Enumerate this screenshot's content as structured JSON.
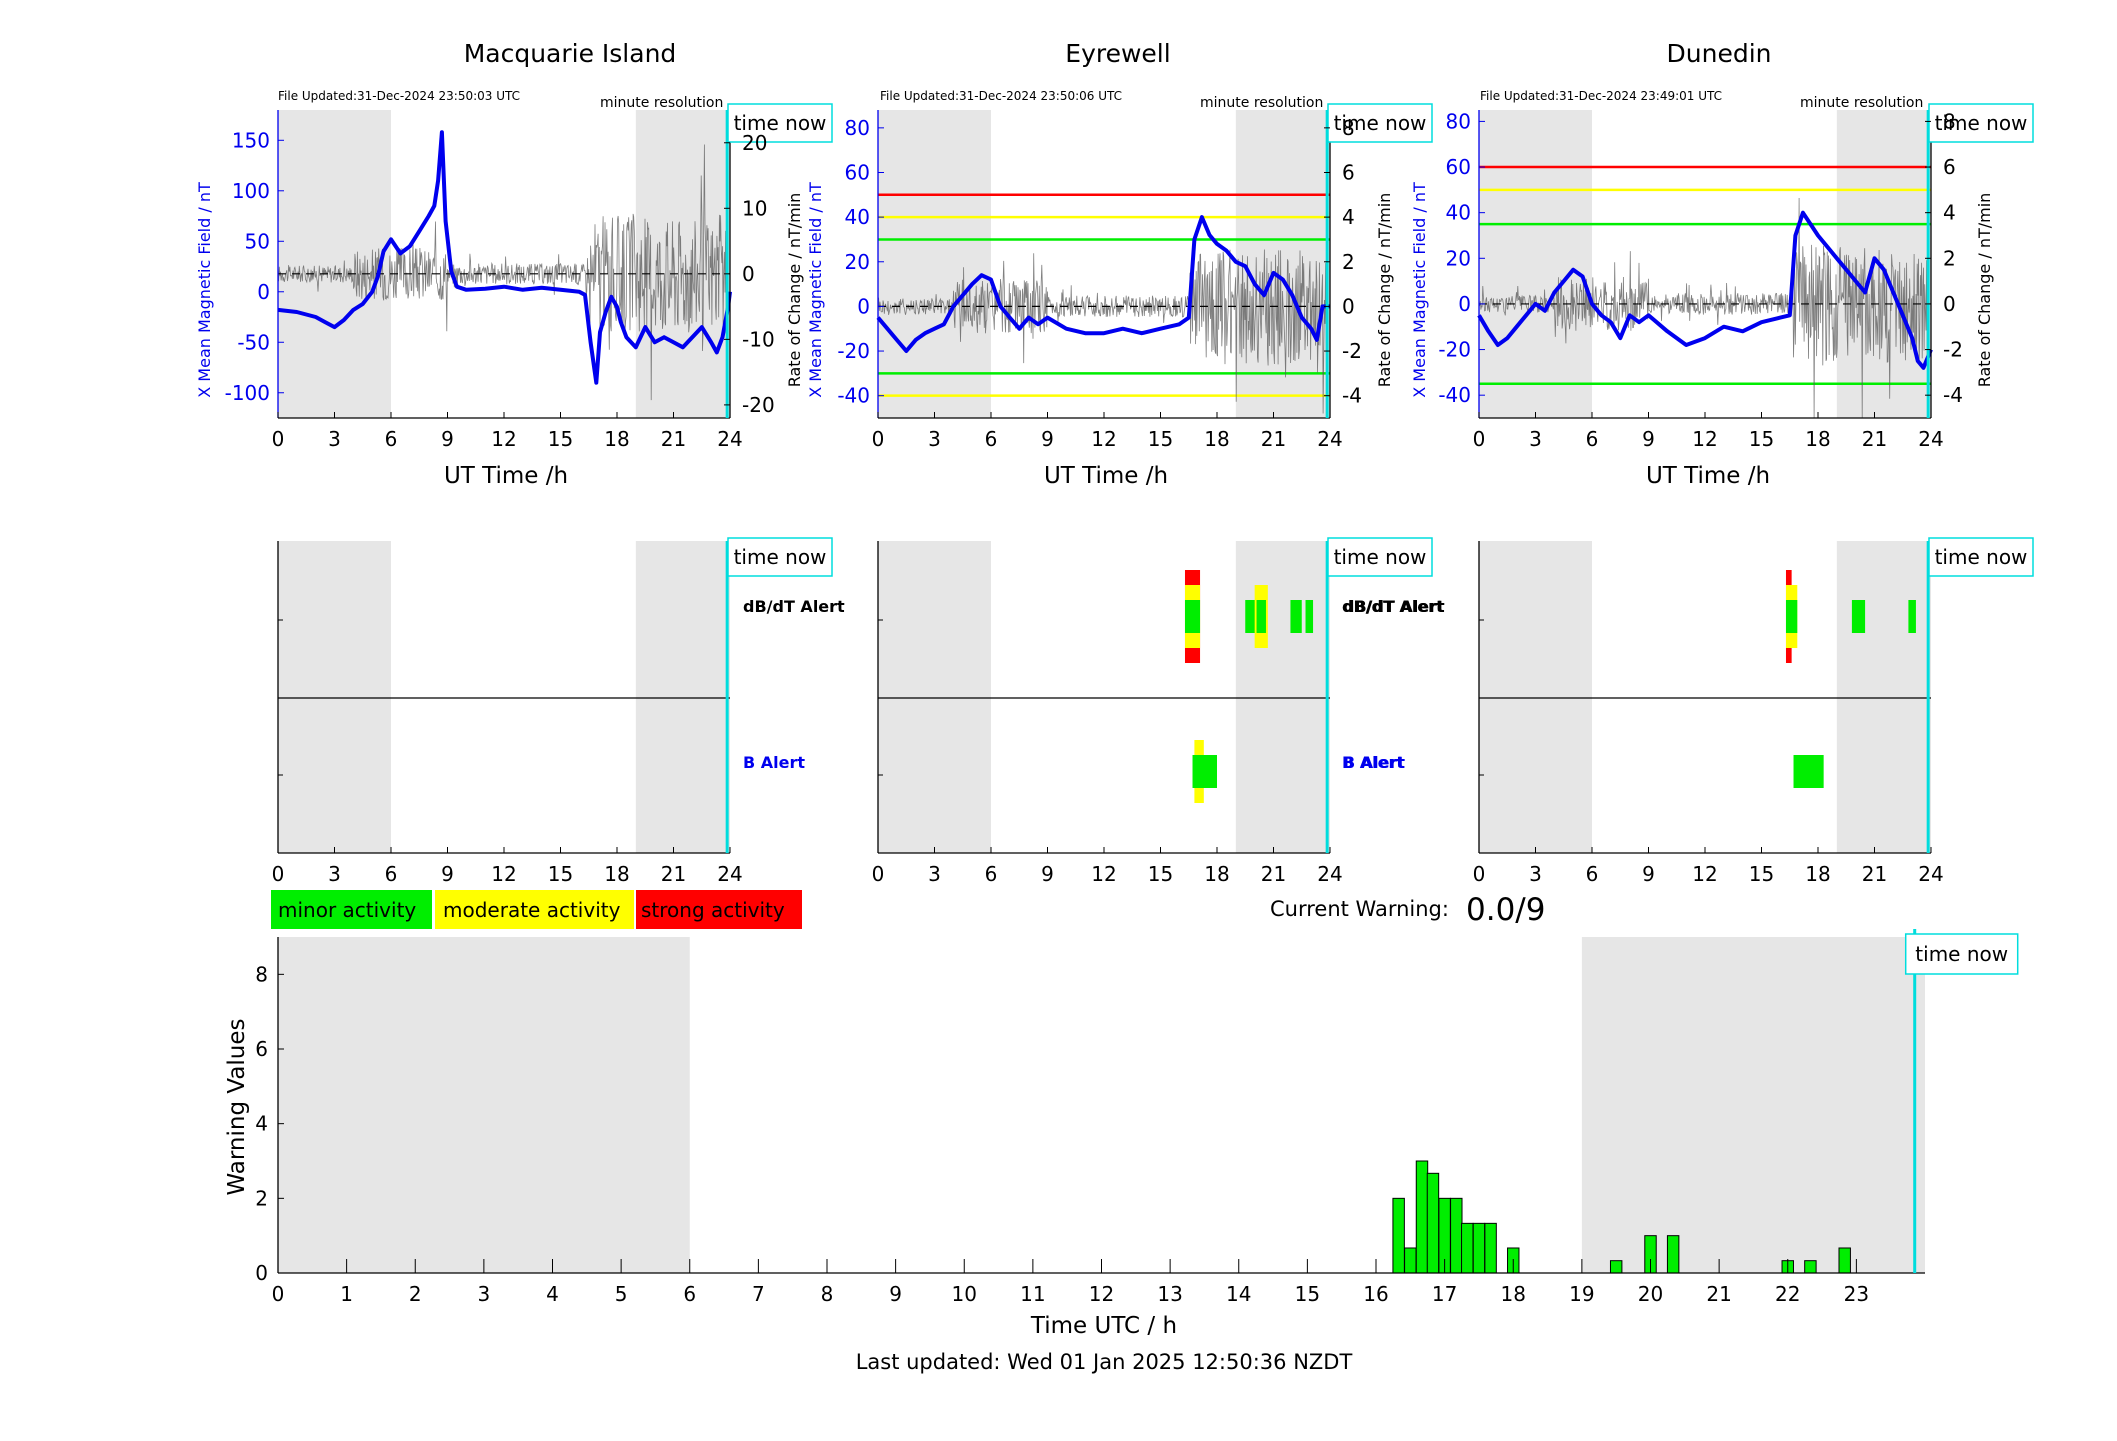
{
  "panels": [
    {
      "title": "Macquarie Island",
      "file_updated": "File Updated:31-Dec-2024 23:50:03 UTC",
      "resolution": "minute resolution",
      "time_now_label": "time now",
      "xlabel": "UT Time /h",
      "ylabel_left": "X Mean Magnetic Field / nT",
      "ylabel_right": "Rate of Change / nT/min",
      "xticks": [
        "0",
        "3",
        "6",
        "9",
        "12",
        "15",
        "18",
        "21",
        "24"
      ],
      "left_ticks": [
        "150",
        "100",
        "50",
        "0",
        "-50",
        "-100"
      ],
      "right_ticks": [
        "20",
        "10",
        "0",
        "-10",
        "-20"
      ],
      "dbdt_label": "dB/dT Alert",
      "b_label": "B Alert"
    },
    {
      "title": "Eyrewell",
      "file_updated": "File Updated:31-Dec-2024 23:50:06 UTC",
      "resolution": "minute resolution",
      "time_now_label": "time now",
      "xlabel": "UT Time /h",
      "ylabel_left": "X Mean Magnetic Field / nT",
      "ylabel_right": "Rate of Change / nT/min",
      "xticks": [
        "0",
        "3",
        "6",
        "9",
        "12",
        "15",
        "18",
        "21",
        "24"
      ],
      "left_ticks": [
        "80",
        "60",
        "40",
        "20",
        "0",
        "-20",
        "-40"
      ],
      "right_ticks": [
        "8",
        "6",
        "4",
        "2",
        "0",
        "-2",
        "-4"
      ],
      "dbdt_label": "dB/dT Alert",
      "b_label": "B Alert"
    },
    {
      "title": "Dunedin",
      "file_updated": "File Updated:31-Dec-2024 23:49:01 UTC",
      "resolution": "minute resolution",
      "time_now_label": "time now",
      "xlabel": "UT Time /h",
      "ylabel_left": "X Mean Magnetic Field / nT",
      "ylabel_right": "Rate of Change / nT/min",
      "xticks": [
        "0",
        "3",
        "6",
        "9",
        "12",
        "15",
        "18",
        "21",
        "24"
      ],
      "left_ticks": [
        "80",
        "60",
        "40",
        "20",
        "0",
        "-20",
        "-40"
      ],
      "right_ticks": [
        "8",
        "6",
        "4",
        "2",
        "0",
        "-2",
        "-4"
      ],
      "dbdt_label": "dB/dT Alert",
      "b_label": "B Alert"
    }
  ],
  "legend": {
    "minor": "minor activity",
    "moderate": "moderate activity",
    "strong": "strong activity"
  },
  "current_warning": {
    "label": "Current Warning:",
    "value": "0.0/9"
  },
  "warning_chart": {
    "ylabel": "Warning Values",
    "xlabel": "Time UTC / h",
    "time_now_label": "time now",
    "xticks": [
      "0",
      "1",
      "2",
      "3",
      "4",
      "5",
      "6",
      "7",
      "8",
      "9",
      "10",
      "11",
      "12",
      "13",
      "14",
      "15",
      "16",
      "17",
      "18",
      "19",
      "20",
      "21",
      "22",
      "23"
    ],
    "yticks": [
      "8",
      "6",
      "4",
      "2",
      "0"
    ]
  },
  "last_updated": "Last updated: Wed 01 Jan 2025 12:50:36 NZDT",
  "colors": {
    "minor": "#00ee00",
    "moderate": "#ffff00",
    "strong": "#ff0000",
    "field_line": "#0000ee",
    "time_now": "#00dddd",
    "shade": "#e6e6e6"
  },
  "chart_data": [
    {
      "type": "line",
      "title": "Macquarie Island",
      "xlabel": "UT Time /h",
      "ylabel": "X Mean Magnetic Field / nT",
      "y2label": "Rate of Change / nT/min",
      "xlim": [
        0,
        24
      ],
      "ylim": [
        -125,
        180
      ],
      "y2lim": [
        -22,
        25
      ],
      "night_shading": [
        [
          0,
          6
        ],
        [
          19,
          24
        ]
      ],
      "time_now": 23.85,
      "series": [
        {
          "x": [
            0,
            1,
            2,
            2.5,
            3,
            3.5,
            4,
            4.5,
            5,
            5.3,
            5.6,
            6,
            6.5,
            7,
            7.5,
            8,
            8.3,
            8.5,
            8.7,
            8.9,
            9.2,
            9.5,
            10,
            11,
            12,
            13,
            14,
            15,
            16,
            16.3,
            16.6,
            16.9,
            17.1,
            17.4,
            17.7,
            18,
            18.2,
            18.5,
            19,
            19.5,
            20,
            20.5,
            21,
            21.5,
            22,
            22.5,
            23,
            23.3,
            23.6,
            23.9,
            24
          ],
          "y": [
            -18,
            -20,
            -25,
            -30,
            -35,
            -28,
            -18,
            -12,
            0,
            15,
            40,
            52,
            38,
            45,
            60,
            75,
            85,
            110,
            158,
            70,
            20,
            5,
            2,
            3,
            5,
            2,
            4,
            2,
            0,
            -3,
            -50,
            -90,
            -40,
            -20,
            -5,
            -15,
            -30,
            -45,
            -55,
            -35,
            -50,
            -45,
            -50,
            -55,
            -45,
            -35,
            -50,
            -60,
            -45,
            -15,
            0
          ]
        },
        {
          "x": [
            0,
            6,
            9,
            12,
            15,
            16.5,
            18,
            21,
            24
          ],
          "y": [
            0,
            0,
            0,
            0,
            0,
            0,
            0,
            0,
            0
          ]
        }
      ]
    },
    {
      "type": "line",
      "title": "Eyrewell",
      "xlabel": "UT Time /h",
      "ylabel": "X Mean Magnetic Field / nT",
      "y2label": "Rate of Change / nT/min",
      "xlim": [
        0,
        24
      ],
      "ylim": [
        -50,
        88
      ],
      "y2lim": [
        -5,
        8.8
      ],
      "night_shading": [
        [
          0,
          6
        ],
        [
          19,
          24
        ]
      ],
      "time_now": 23.85,
      "thresholds": [
        {
          "value": 50,
          "color": "#ff0000"
        },
        {
          "value": 40,
          "color": "#ffff00"
        },
        {
          "value": 30,
          "color": "#00ee00"
        },
        {
          "value": -30,
          "color": "#00ee00"
        },
        {
          "value": -40,
          "color": "#ffff00"
        }
      ],
      "series": [
        {
          "x": [
            0,
            0.5,
            1,
            1.5,
            2,
            2.5,
            3,
            3.5,
            4,
            4.5,
            5,
            5.5,
            6,
            6.5,
            7,
            7.5,
            8,
            8.5,
            9,
            10,
            11,
            12,
            13,
            14,
            15,
            16,
            16.5,
            16.8,
            17.2,
            17.6,
            18,
            18.5,
            19,
            19.5,
            20,
            20.5,
            21,
            21.5,
            22,
            22.5,
            23,
            23.3,
            23.6,
            24
          ],
          "y": [
            -5,
            -10,
            -15,
            -20,
            -15,
            -12,
            -10,
            -8,
            0,
            5,
            10,
            14,
            12,
            0,
            -5,
            -10,
            -5,
            -8,
            -5,
            -10,
            -12,
            -12,
            -10,
            -12,
            -10,
            -8,
            -5,
            30,
            40,
            32,
            28,
            25,
            20,
            18,
            10,
            5,
            15,
            12,
            5,
            -5,
            -10,
            -15,
            0,
            0
          ]
        },
        {
          "x": [
            0,
            6,
            12,
            16.5,
            18,
            21,
            24
          ],
          "y": [
            0,
            0,
            0,
            0,
            0,
            0,
            0
          ]
        }
      ]
    },
    {
      "type": "line",
      "title": "Dunedin",
      "xlabel": "UT Time /h",
      "ylabel": "X Mean Magnetic Field / nT",
      "y2label": "Rate of Change / nT/min",
      "xlim": [
        0,
        24
      ],
      "ylim": [
        -50,
        85
      ],
      "y2lim": [
        -5,
        8.5
      ],
      "night_shading": [
        [
          0,
          6
        ],
        [
          19,
          24
        ]
      ],
      "time_now": 23.85,
      "thresholds": [
        {
          "value": 60,
          "color": "#ff0000"
        },
        {
          "value": 50,
          "color": "#ffff00"
        },
        {
          "value": 35,
          "color": "#00ee00"
        },
        {
          "value": -35,
          "color": "#00ee00"
        }
      ],
      "series": [
        {
          "x": [
            0,
            0.5,
            1,
            1.5,
            2,
            2.5,
            3,
            3.5,
            4,
            4.5,
            5,
            5.5,
            6,
            6.5,
            7,
            7.5,
            8,
            8.5,
            9,
            10,
            11,
            12,
            13,
            14,
            15,
            16,
            16.5,
            16.8,
            17.2,
            17.6,
            18,
            18.5,
            19,
            19.5,
            20,
            20.5,
            21,
            21.5,
            22,
            22.5,
            23,
            23.3,
            23.6,
            24
          ],
          "y": [
            -5,
            -12,
            -18,
            -15,
            -10,
            -5,
            0,
            -3,
            5,
            10,
            15,
            12,
            0,
            -5,
            -8,
            -15,
            -5,
            -8,
            -5,
            -12,
            -18,
            -15,
            -10,
            -12,
            -8,
            -6,
            -5,
            30,
            40,
            35,
            30,
            25,
            20,
            15,
            10,
            5,
            20,
            15,
            5,
            -5,
            -15,
            -25,
            -28,
            -20
          ]
        },
        {
          "x": [
            0,
            6,
            12,
            16.5,
            18,
            21,
            24
          ],
          "y": [
            0,
            0,
            0,
            0,
            0,
            0,
            0
          ]
        }
      ]
    },
    {
      "type": "bar",
      "xlabel": "Time UTC / h",
      "ylabel": "Warning Values",
      "xlim": [
        0,
        24
      ],
      "ylim": [
        0,
        9
      ],
      "night_shading": [
        [
          0,
          6
        ],
        [
          19,
          24
        ]
      ],
      "time_now": 23.85,
      "x": [
        16.33,
        16.5,
        16.67,
        16.83,
        17,
        17.17,
        17.33,
        17.5,
        17.67,
        18,
        19.5,
        20,
        20.33,
        22,
        22.33,
        22.83
      ],
      "values": [
        2,
        0.67,
        3,
        2.67,
        2,
        2,
        1.33,
        1.33,
        1.33,
        0.67,
        0.33,
        1,
        1,
        0.33,
        0.33,
        0.67
      ]
    }
  ]
}
